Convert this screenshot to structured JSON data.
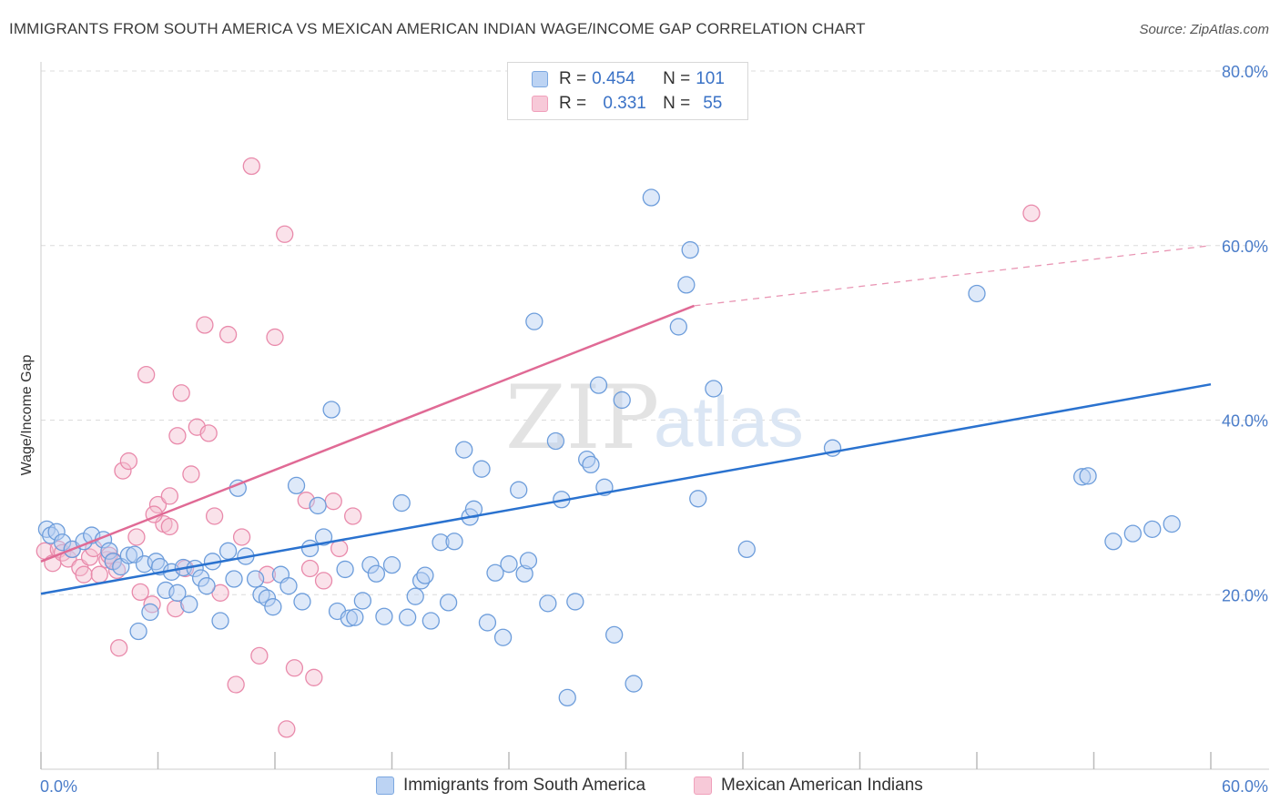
{
  "header": {
    "title": "IMMIGRANTS FROM SOUTH AMERICA VS MEXICAN AMERICAN INDIAN WAGE/INCOME GAP CORRELATION CHART",
    "source": "Source: ZipAtlas.com"
  },
  "legend": {
    "rows": [
      {
        "r_label": "R =",
        "r_value": "0.454",
        "n_label": "N =",
        "n_value": "101"
      },
      {
        "r_label": "R =",
        "r_value": "0.331",
        "n_label": "N =",
        "n_value": "55"
      }
    ]
  },
  "chart_data": {
    "type": "scatter",
    "ylabel": "Wage/Income Gap",
    "xlim": [
      0,
      60
    ],
    "ylim": [
      0,
      80
    ],
    "x_tick_labels": [
      "0.0%",
      "60.0%"
    ],
    "y_tick_labels": [
      "20.0%",
      "40.0%",
      "60.0%",
      "80.0%"
    ],
    "y_ticks": [
      20,
      40,
      60,
      80
    ],
    "grid": "dashed horizontal",
    "watermark": "ZIPatlas",
    "series": [
      {
        "name": "Immigrants from South America",
        "color": "#7ba7e0",
        "line_color": "#2a72cf",
        "trend": {
          "x0": 0,
          "y0": 20.1,
          "x1": 60,
          "y1": 44.1
        },
        "points": [
          [
            0.3,
            27.5
          ],
          [
            0.5,
            26.8
          ],
          [
            0.8,
            27.2
          ],
          [
            1.1,
            26.0
          ],
          [
            1.6,
            25.2
          ],
          [
            2.2,
            26.1
          ],
          [
            2.6,
            26.8
          ],
          [
            3.2,
            26.3
          ],
          [
            3.5,
            25.0
          ],
          [
            3.7,
            23.8
          ],
          [
            4.1,
            23.2
          ],
          [
            4.5,
            24.5
          ],
          [
            4.8,
            24.6
          ],
          [
            5.0,
            15.8
          ],
          [
            5.3,
            23.5
          ],
          [
            5.6,
            18.0
          ],
          [
            5.9,
            23.8
          ],
          [
            6.1,
            23.2
          ],
          [
            6.4,
            20.5
          ],
          [
            6.7,
            22.6
          ],
          [
            7.0,
            20.2
          ],
          [
            7.3,
            23.1
          ],
          [
            7.6,
            18.9
          ],
          [
            7.9,
            23.0
          ],
          [
            8.2,
            21.9
          ],
          [
            8.5,
            21.0
          ],
          [
            8.8,
            23.8
          ],
          [
            9.2,
            17.0
          ],
          [
            9.6,
            25.0
          ],
          [
            9.9,
            21.8
          ],
          [
            10.1,
            32.2
          ],
          [
            10.5,
            24.4
          ],
          [
            11.0,
            21.8
          ],
          [
            11.3,
            20.0
          ],
          [
            11.6,
            19.6
          ],
          [
            11.9,
            18.6
          ],
          [
            12.3,
            22.3
          ],
          [
            12.7,
            21.0
          ],
          [
            13.1,
            32.5
          ],
          [
            13.4,
            19.2
          ],
          [
            13.8,
            25.3
          ],
          [
            14.2,
            30.2
          ],
          [
            14.5,
            26.6
          ],
          [
            14.9,
            41.2
          ],
          [
            15.2,
            18.1
          ],
          [
            15.6,
            22.9
          ],
          [
            15.8,
            17.3
          ],
          [
            16.1,
            17.4
          ],
          [
            16.5,
            19.3
          ],
          [
            16.9,
            23.4
          ],
          [
            17.2,
            22.4
          ],
          [
            17.6,
            17.5
          ],
          [
            18.0,
            23.4
          ],
          [
            18.5,
            30.5
          ],
          [
            18.8,
            17.4
          ],
          [
            19.2,
            19.8
          ],
          [
            19.5,
            21.6
          ],
          [
            19.7,
            22.2
          ],
          [
            20.0,
            17.0
          ],
          [
            20.5,
            26.0
          ],
          [
            20.9,
            19.1
          ],
          [
            21.2,
            26.1
          ],
          [
            21.7,
            36.6
          ],
          [
            22.0,
            28.9
          ],
          [
            22.2,
            29.8
          ],
          [
            22.6,
            34.4
          ],
          [
            22.9,
            16.8
          ],
          [
            23.3,
            22.5
          ],
          [
            23.7,
            15.1
          ],
          [
            24.0,
            23.5
          ],
          [
            24.5,
            32.0
          ],
          [
            24.8,
            22.4
          ],
          [
            25.0,
            23.9
          ],
          [
            25.3,
            51.3
          ],
          [
            26.0,
            19.0
          ],
          [
            26.4,
            37.6
          ],
          [
            26.7,
            30.9
          ],
          [
            27.0,
            8.2
          ],
          [
            27.4,
            19.2
          ],
          [
            28.0,
            35.5
          ],
          [
            28.2,
            34.9
          ],
          [
            28.6,
            44.0
          ],
          [
            28.9,
            32.3
          ],
          [
            29.4,
            15.4
          ],
          [
            29.8,
            42.3
          ],
          [
            30.4,
            9.8
          ],
          [
            31.3,
            65.5
          ],
          [
            32.7,
            50.7
          ],
          [
            33.1,
            55.5
          ],
          [
            33.3,
            59.5
          ],
          [
            33.7,
            31.0
          ],
          [
            34.5,
            43.6
          ],
          [
            36.2,
            25.2
          ],
          [
            40.6,
            36.8
          ],
          [
            48.0,
            54.5
          ],
          [
            53.4,
            33.5
          ],
          [
            53.7,
            33.6
          ],
          [
            55.0,
            26.1
          ],
          [
            56.0,
            27.0
          ],
          [
            57.0,
            27.5
          ],
          [
            58.0,
            28.1
          ]
        ]
      },
      {
        "name": "Mexican American Indians",
        "color": "#f0a0bb",
        "line_color": "#e06a95",
        "trend": {
          "x0": 0,
          "y0": 23.8,
          "x1": 33.5,
          "y1": 53.1
        },
        "trend_ext": {
          "x0": 33.5,
          "y0": 53.1,
          "x1": 60,
          "y1": 60.0
        },
        "points": [
          [
            0.2,
            25.0
          ],
          [
            0.6,
            23.6
          ],
          [
            0.9,
            25.2
          ],
          [
            1.1,
            24.8
          ],
          [
            1.4,
            24.1
          ],
          [
            1.6,
            25.2
          ],
          [
            2.0,
            23.1
          ],
          [
            2.2,
            22.3
          ],
          [
            2.5,
            24.3
          ],
          [
            2.7,
            25.3
          ],
          [
            3.0,
            22.3
          ],
          [
            3.4,
            24.0
          ],
          [
            3.7,
            23.9
          ],
          [
            3.9,
            22.8
          ],
          [
            4.0,
            13.9
          ],
          [
            4.2,
            34.2
          ],
          [
            4.5,
            35.3
          ],
          [
            4.9,
            26.6
          ],
          [
            5.1,
            20.3
          ],
          [
            5.4,
            45.2
          ],
          [
            5.7,
            18.9
          ],
          [
            6.0,
            30.3
          ],
          [
            6.3,
            28.1
          ],
          [
            6.6,
            31.3
          ],
          [
            6.9,
            18.4
          ],
          [
            7.2,
            43.1
          ],
          [
            7.4,
            23.0
          ],
          [
            7.7,
            33.8
          ],
          [
            8.0,
            39.2
          ],
          [
            8.4,
            50.9
          ],
          [
            8.6,
            38.5
          ],
          [
            8.9,
            29.0
          ],
          [
            9.2,
            20.2
          ],
          [
            9.6,
            49.8
          ],
          [
            10.0,
            9.7
          ],
          [
            10.3,
            26.6
          ],
          [
            10.8,
            69.1
          ],
          [
            11.2,
            13.0
          ],
          [
            11.6,
            22.3
          ],
          [
            12.0,
            49.5
          ],
          [
            12.5,
            61.3
          ],
          [
            13.0,
            11.6
          ],
          [
            13.6,
            30.8
          ],
          [
            14.0,
            10.5
          ],
          [
            14.5,
            21.6
          ],
          [
            15.0,
            30.7
          ],
          [
            15.3,
            25.3
          ],
          [
            16.0,
            29.0
          ],
          [
            50.8,
            63.7
          ],
          [
            12.6,
            4.6
          ],
          [
            7.0,
            38.2
          ],
          [
            3.5,
            24.5
          ],
          [
            5.8,
            29.2
          ],
          [
            6.6,
            27.8
          ],
          [
            13.8,
            23.0
          ]
        ]
      }
    ]
  }
}
